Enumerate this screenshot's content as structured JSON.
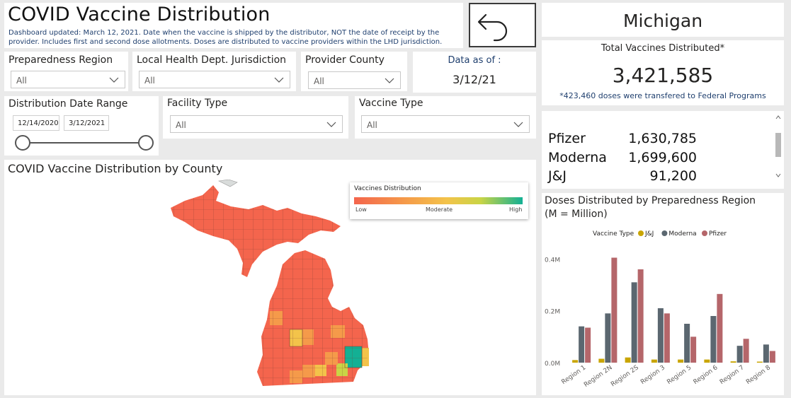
{
  "header": {
    "title": "COVID Vaccine Distribution",
    "subtitle_line1": "Dashboard updated: March 12, 2021. Date when the vaccine is shipped by the distributor, NOT the date of receipt by the",
    "subtitle_line2": "provider. Includes first and second dose allotments. Doses are distributed to vaccine providers within the LHD jurisdiction."
  },
  "back_button": {
    "icon": "back-arrow-icon"
  },
  "filters": {
    "preparedness_region": {
      "label": "Preparedness Region",
      "value": "All"
    },
    "lhd_jurisdiction": {
      "label": "Local Health Dept. Jurisdiction",
      "value": "All"
    },
    "provider_county": {
      "label": "Provider County",
      "value": "All"
    },
    "date_range": {
      "label": "Distribution Date Range",
      "start": "12/14/2020",
      "end": "3/12/2021",
      "start_fraction": 0,
      "end_fraction": 1
    },
    "facility_type": {
      "label": "Facility Type",
      "value": "All"
    },
    "vaccine_type": {
      "label": "Vaccine Type",
      "value": "All"
    }
  },
  "data_as_of": {
    "label": "Data as of :",
    "value": "3/12/21"
  },
  "state": {
    "name": "Michigan"
  },
  "totals": {
    "label": "Total Vaccines Distributed*",
    "value": "3,421,585",
    "footnote": "*423,460 doses were transfered to Federal Programs"
  },
  "breakdown": [
    {
      "name": "Pfizer",
      "value": "1,630,785"
    },
    {
      "name": "Moderna",
      "value": "1,699,600"
    },
    {
      "name": "J&J",
      "value": "91,200"
    }
  ],
  "map": {
    "title": "COVID Vaccine Distribution by County",
    "legend_title": "Vaccines Distribution",
    "legend_low": "Low",
    "legend_mid": "Moderate",
    "legend_high": "High",
    "colors": {
      "low": "#f4654d",
      "mid1": "#f59a4a",
      "mid2": "#f3c34a",
      "mid3": "#c9d446",
      "high": "#13b094"
    }
  },
  "chart_data": {
    "type": "bar",
    "title": "Doses Distributed by Preparedness Region (M = Million)",
    "title_line1": "Doses Distributed by Preparedness Region",
    "title_line2": "(M = Million)",
    "legend_title": "Vaccine Type",
    "legend_placement": "top",
    "categories": [
      "Region 1",
      "Region 2N",
      "Region 2S",
      "Region 3",
      "Region 5",
      "Region 6",
      "Region 7",
      "Region 8"
    ],
    "series": [
      {
        "name": "J&J",
        "color": "#c9a500",
        "values": [
          0.01,
          0.015,
          0.02,
          0.012,
          0.012,
          0.012,
          0.005,
          0.004
        ]
      },
      {
        "name": "Moderna",
        "color": "#5b6770",
        "values": [
          0.14,
          0.19,
          0.31,
          0.21,
          0.15,
          0.18,
          0.065,
          0.07
        ]
      },
      {
        "name": "Pfizer",
        "color": "#b5666a",
        "values": [
          0.135,
          0.405,
          0.36,
          0.19,
          0.1,
          0.265,
          0.092,
          0.045
        ]
      }
    ],
    "yticks": [
      "0.0M",
      "0.2M",
      "0.4M"
    ],
    "ytick_values": [
      0,
      0.2,
      0.4
    ],
    "ylim": [
      0,
      0.42
    ],
    "grid": false
  }
}
